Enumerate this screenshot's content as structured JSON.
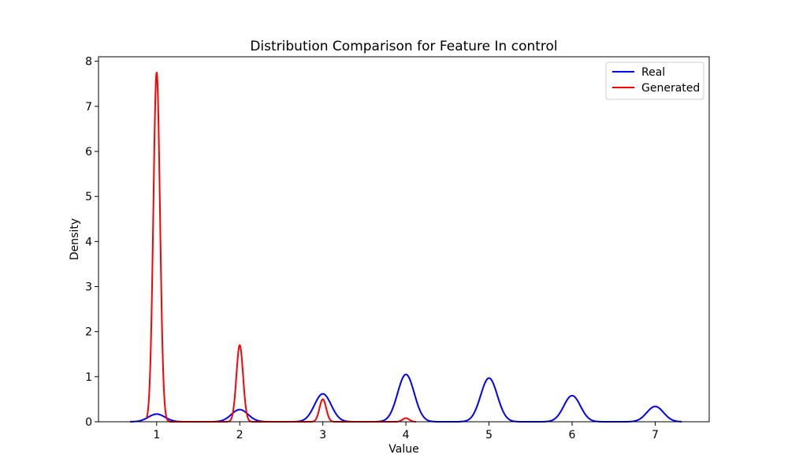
{
  "chart_data": {
    "type": "line",
    "title": "Distribution Comparison for Feature In control",
    "xlabel": "Value",
    "ylabel": "Density",
    "xlim": [
      0.3,
      7.65
    ],
    "ylim": [
      0,
      8.1
    ],
    "xticks": [
      1,
      2,
      3,
      4,
      5,
      6,
      7
    ],
    "yticks": [
      0,
      1,
      2,
      3,
      4,
      5,
      6,
      7,
      8
    ],
    "grid": false,
    "legend_position": "top-right",
    "series": [
      {
        "name": "Real",
        "color": "#0000ff",
        "x_range": [
          0.68,
          7.32
        ],
        "peaks": [
          {
            "x": 1,
            "y": 0.17,
            "sigma": 0.1
          },
          {
            "x": 2,
            "y": 0.27,
            "sigma": 0.1
          },
          {
            "x": 3,
            "y": 0.62,
            "sigma": 0.1
          },
          {
            "x": 4,
            "y": 1.05,
            "sigma": 0.1
          },
          {
            "x": 5,
            "y": 0.97,
            "sigma": 0.1
          },
          {
            "x": 6,
            "y": 0.58,
            "sigma": 0.1
          },
          {
            "x": 7,
            "y": 0.34,
            "sigma": 0.1
          }
        ]
      },
      {
        "name": "Generated",
        "color": "#ff0000",
        "x_range": [
          0.88,
          4.12
        ],
        "peaks": [
          {
            "x": 1,
            "y": 7.75,
            "sigma": 0.04
          },
          {
            "x": 2,
            "y": 1.7,
            "sigma": 0.04
          },
          {
            "x": 3,
            "y": 0.5,
            "sigma": 0.04
          },
          {
            "x": 4,
            "y": 0.08,
            "sigma": 0.04
          }
        ]
      }
    ]
  }
}
